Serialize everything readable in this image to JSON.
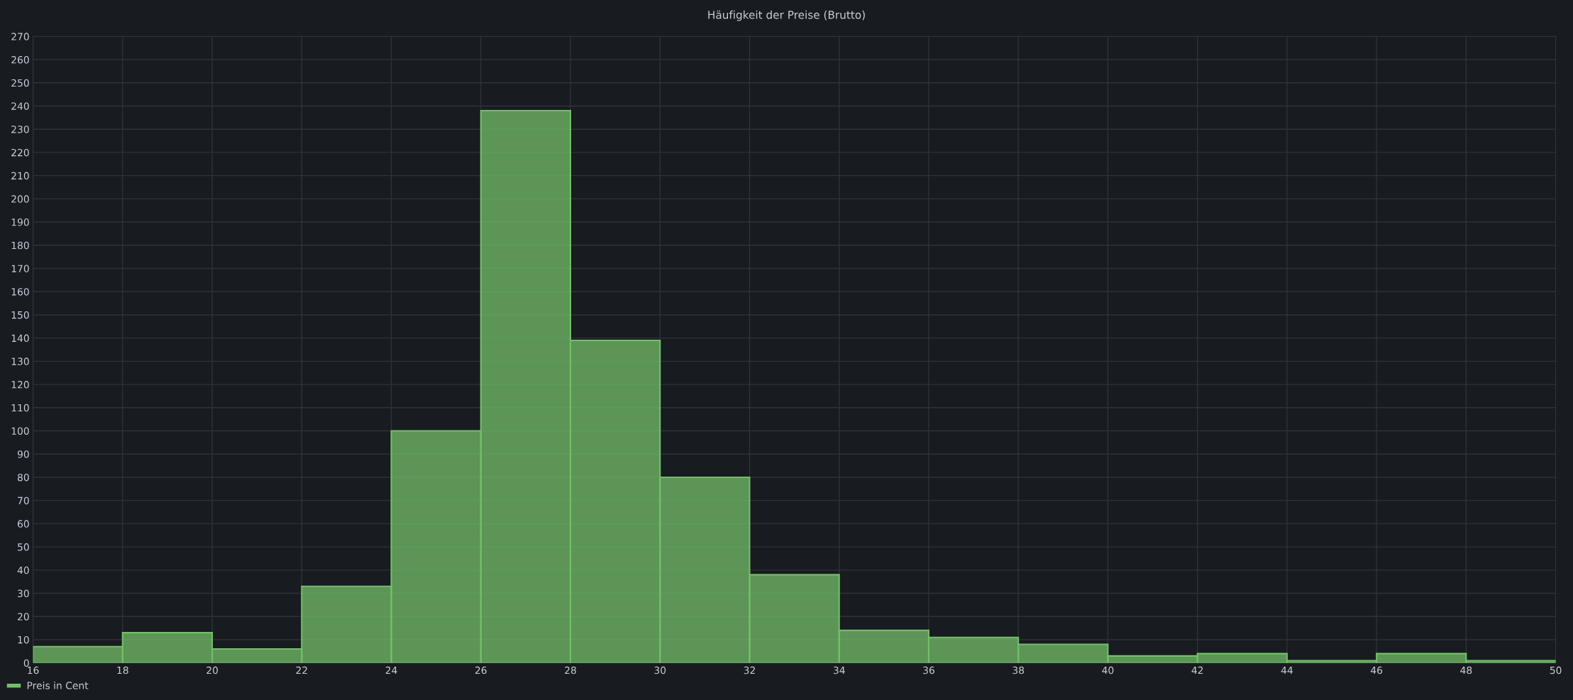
{
  "chart_data": {
    "type": "histogram",
    "title": "Häufigkeit der Preise (Brutto)",
    "bins": [
      16,
      18,
      20,
      22,
      24,
      26,
      28,
      30,
      32,
      34,
      36,
      38,
      40,
      42,
      44,
      46,
      48,
      50
    ],
    "series": [
      {
        "name": "Preis in Cent",
        "color": "#73bf69",
        "values": [
          7,
          13,
          6,
          33,
          100,
          238,
          139,
          80,
          38,
          14,
          11,
          8,
          3,
          4,
          1,
          4,
          1
        ]
      }
    ],
    "xlim": [
      16,
      50
    ],
    "xticks": [
      16,
      18,
      20,
      22,
      24,
      26,
      28,
      30,
      32,
      34,
      36,
      38,
      40,
      42,
      44,
      46,
      48,
      50
    ],
    "ylim": [
      0,
      270
    ],
    "yticks": [
      0,
      10,
      20,
      30,
      40,
      50,
      60,
      70,
      80,
      90,
      100,
      110,
      120,
      130,
      140,
      150,
      160,
      170,
      180,
      190,
      200,
      210,
      220,
      230,
      240,
      250,
      260,
      270
    ],
    "grid": true,
    "legend": "bottom left"
  }
}
